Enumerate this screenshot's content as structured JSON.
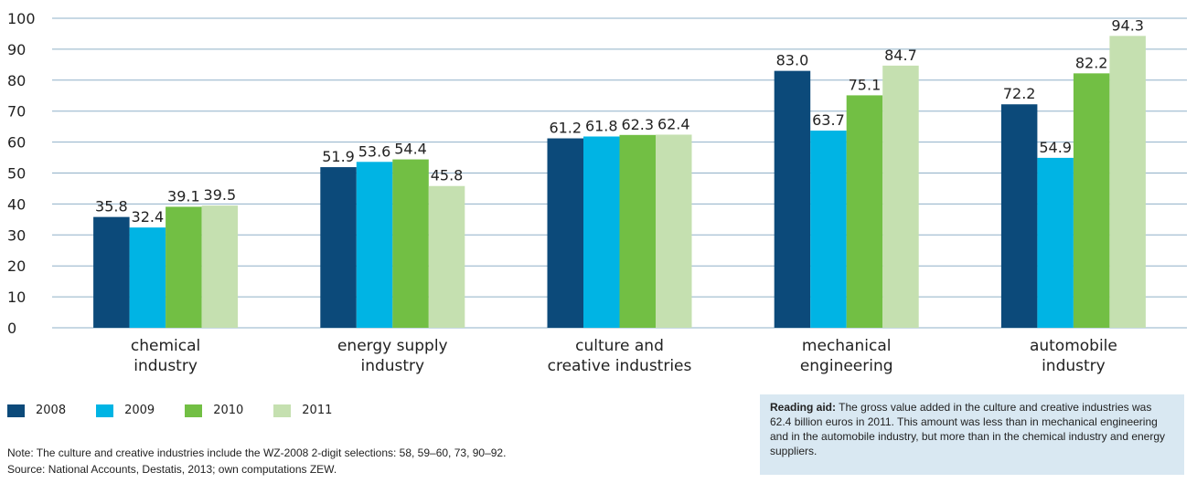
{
  "chart_data": {
    "type": "bar",
    "title": "",
    "xlabel": "",
    "ylabel": "",
    "ylim": [
      0,
      100
    ],
    "yticks": [
      0,
      10,
      20,
      30,
      40,
      50,
      60,
      70,
      80,
      90,
      100
    ],
    "grid": true,
    "legend_position": "bottom-left",
    "categories": [
      [
        "chemical",
        "industry"
      ],
      [
        "energy supply",
        "industry"
      ],
      [
        "culture and",
        "creative industries"
      ],
      [
        "mechanical",
        "engineering"
      ],
      [
        "automobile",
        "industry"
      ]
    ],
    "series": [
      {
        "name": "2008",
        "color": "#0c4a7a",
        "values": [
          35.8,
          51.9,
          61.2,
          83.0,
          72.2
        ]
      },
      {
        "name": "2009",
        "color": "#00b4e4",
        "values": [
          32.4,
          53.6,
          61.8,
          63.7,
          54.9
        ]
      },
      {
        "name": "2010",
        "color": "#72bf44",
        "values": [
          39.1,
          54.4,
          62.3,
          75.1,
          82.2
        ]
      },
      {
        "name": "2011",
        "color": "#c5e0b0",
        "values": [
          39.5,
          45.8,
          62.4,
          84.7,
          94.3
        ]
      }
    ]
  },
  "notes": {
    "note": "Note: The culture and creative industries include the WZ-2008 2-digit selections: 58, 59–60, 73, 90–92.",
    "source": "Source: National Accounts, Destatis, 2013; own computations ZEW."
  },
  "reading_aid": {
    "label": "Reading aid:",
    "text": " The gross value added in the culture and creative industries was 62.4 billion euros in 2011. This amount was less than in mechanical engineering and in the automobile industry, but more than in the chemical industry and energy suppliers."
  }
}
